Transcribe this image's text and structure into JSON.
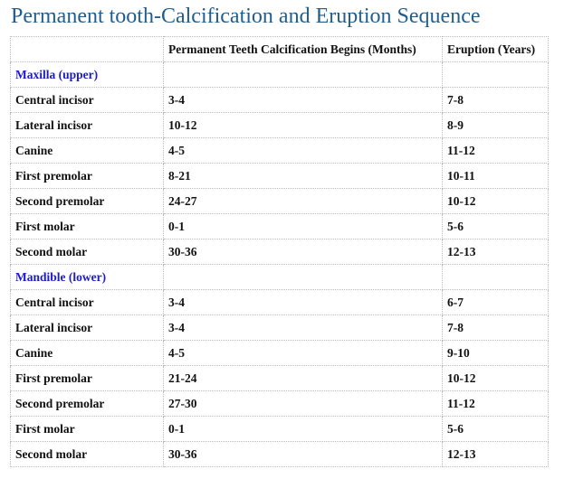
{
  "title": "Permanent tooth-Calcification and Eruption Sequence",
  "table": {
    "header": [
      "Permanent Teeth Calcification Begins (Months)",
      "Eruption (Years)"
    ],
    "sections": [
      {
        "label": "Maxilla (upper)",
        "rows": [
          [
            "Central incisor",
            "3-4",
            "7-8"
          ],
          [
            "Lateral incisor",
            "10-12",
            "8-9"
          ],
          [
            "Canine",
            "4-5",
            "11-12"
          ],
          [
            "First premolar",
            "8-21",
            "10-11"
          ],
          [
            "Second premolar",
            "24-27",
            "10-12"
          ],
          [
            "First molar",
            "0-1",
            "5-6"
          ],
          [
            "Second molar",
            "30-36",
            "12-13"
          ]
        ]
      },
      {
        "label": "Mandible (lower)",
        "rows": [
          [
            "Central incisor",
            "3-4",
            "6-7"
          ],
          [
            "Lateral incisor",
            "3-4",
            "7-8"
          ],
          [
            "Canine",
            "4-5",
            "9-10"
          ],
          [
            "First premolar",
            "21-24",
            "10-12"
          ],
          [
            "Second premolar",
            "27-30",
            "11-12"
          ],
          [
            "First molar",
            "0-1",
            "5-6"
          ],
          [
            "Second molar",
            "30-36",
            "12-13"
          ]
        ]
      }
    ]
  }
}
